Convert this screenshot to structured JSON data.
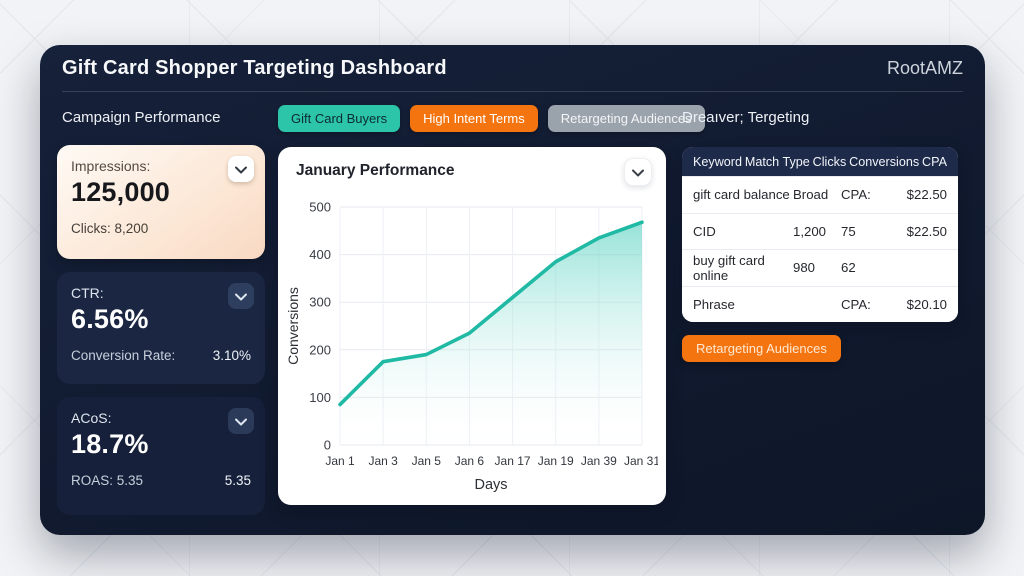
{
  "page": {
    "title": "Gift Card Shopper Targeting Dashboard",
    "brand": "RootAMZ"
  },
  "left": {
    "section_title": "Campaign Performance",
    "cards": [
      {
        "label": "Impressions:",
        "value": "125,000",
        "sub_label": "Clicks: 8,200",
        "sub_value": ""
      },
      {
        "label": "CTR:",
        "value": "6.56%",
        "sub_label": "Conversion Rate:",
        "sub_value": "3.10%"
      },
      {
        "label": "ACoS:",
        "value": "18.7%",
        "sub_label": "ROAS: 5.35",
        "sub_value": "5.35"
      }
    ]
  },
  "tabs": [
    {
      "label": "Gift Card Buyers",
      "color": "#2cc5a9"
    },
    {
      "label": "High Intent Terms",
      "color": "#f4740f"
    },
    {
      "label": "Retargeting Audiences",
      "color": "#9aa2ac"
    }
  ],
  "right": {
    "section_title": "Dreaıver; Tergeting",
    "table": {
      "headers": [
        "Keyword",
        "Match Type",
        "Clicks",
        "Conversions",
        "CPA"
      ],
      "rows": [
        {
          "keyword": "gift card balance",
          "c2": "Broad",
          "c3": "CPA:",
          "c4": "$22.50"
        },
        {
          "keyword": "CID",
          "c2": "1,200",
          "c3": "75",
          "c4": "$22.50"
        },
        {
          "keyword": "buy gift card online",
          "c2": "980",
          "c3": "62",
          "c4": ""
        },
        {
          "keyword": "Phrase",
          "c2": "",
          "c3": "CPA:",
          "c4": "$20.10"
        }
      ]
    },
    "button_label": "Retargeting Audiences"
  },
  "chart_data": {
    "type": "area",
    "title": "January Performance",
    "x": [
      "Jan 1",
      "Jan 3",
      "Jan 5",
      "Jan 6",
      "Jan 17",
      "Jan 19",
      "Jan 39",
      "Jan 31"
    ],
    "values": [
      85,
      175,
      190,
      235,
      310,
      385,
      435,
      468
    ],
    "xlabel": "Days",
    "ylabel": "Conversions",
    "ylim": [
      0,
      500
    ],
    "yticks": [
      0,
      100,
      200,
      300,
      400,
      500
    ],
    "grid": true,
    "legend": false,
    "line_color": "#1fb9a4",
    "fill_top_color": "#5ed3c3",
    "fill_bottom_color": "#ffffff"
  },
  "colors": {
    "dashboard_bg": "#111a2f",
    "accent_teal": "#2cc5a9",
    "accent_orange": "#f4740f",
    "tab_gray": "#9aa2ac",
    "table_header_bg": "#1d2a49"
  }
}
